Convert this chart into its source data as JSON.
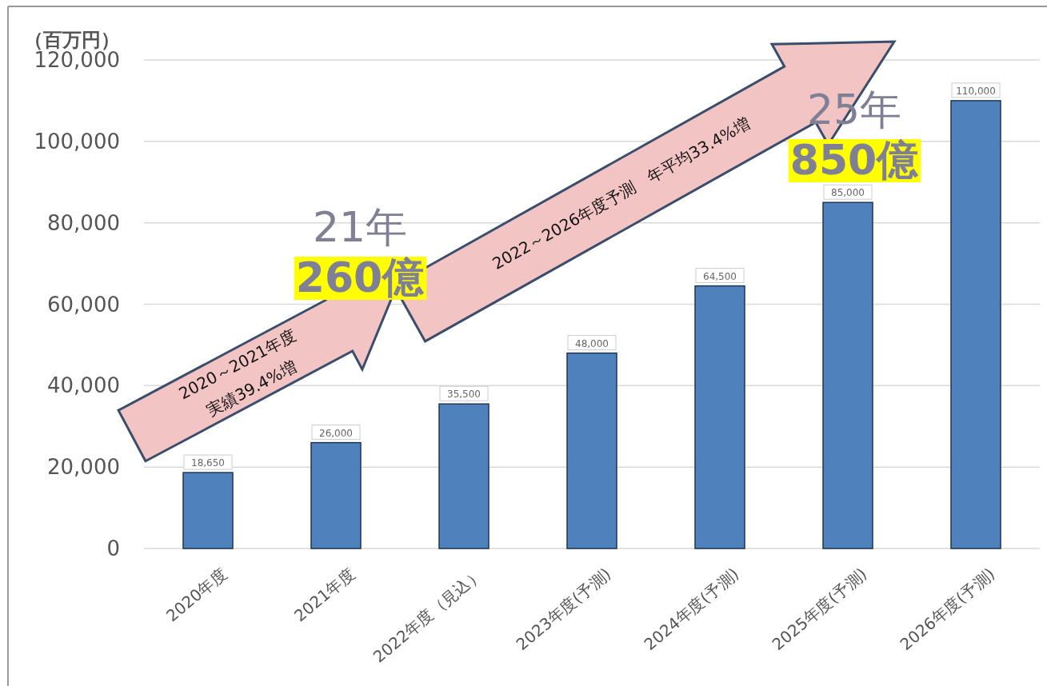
{
  "chart_data": {
    "type": "bar",
    "ylabel": "（百万円）",
    "categories": [
      "2020年度",
      "2021年度",
      "2022年度（見込）",
      "2023年度(予測)",
      "2024年度(予測)",
      "2025年度(予測)",
      "2026年度(予測)"
    ],
    "values": [
      18650,
      26000,
      35500,
      48000,
      64500,
      85000,
      110000
    ],
    "color": "#4f81bd",
    "ylim": [
      0,
      120000
    ],
    "yticks": [
      {
        "value": 0,
        "label": "0"
      },
      {
        "value": 20000,
        "label": "20,000"
      },
      {
        "value": 40000,
        "label": "40,000"
      },
      {
        "value": 60000,
        "label": "60,000"
      },
      {
        "value": 80000,
        "label": "80,000"
      },
      {
        "value": 100000,
        "label": "100,000"
      },
      {
        "value": 120000,
        "label": "120,000"
      }
    ],
    "grid": "y",
    "value_labels": [
      "18,650",
      "26,000",
      "35,500",
      "48,000",
      "64,500",
      "85,000",
      "110,000"
    ],
    "annotations": [
      "2020～2021年度",
      "実績39.4%増",
      "2022～2026年度予測　年平均33.4%増",
      "21年",
      "260億",
      "25年",
      "850億"
    ]
  }
}
